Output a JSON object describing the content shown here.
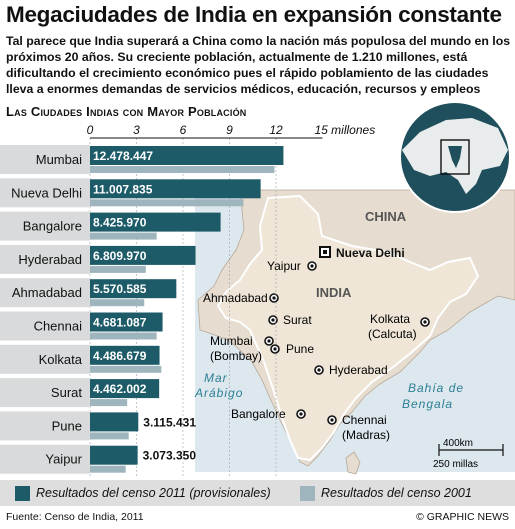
{
  "header": {
    "title": "Megaciudades de India en expansión constante",
    "subtitle": "Tal parece que India superará a China como la nación más populosa del mundo en los próximos 20 años. Su creciente población, actualmente de 1.210 millones, está dificultando el crecimiento económico pues el rápido poblamiento de las ciudades lleva a enormes demandas de servicios médicos, educación, recursos y empleos",
    "section_title": "Las Ciudades Indias con Mayor Población"
  },
  "colors": {
    "series_2011": "#1d5b68",
    "series_2001": "#9fb5bd",
    "label_box": "#1d5b68",
    "land": "#e6dccf",
    "sea": "#dce8ee",
    "globe": "#1f4f5c"
  },
  "chart_data": {
    "type": "bar",
    "orientation": "horizontal",
    "categories": [
      "Mumbai",
      "Nueva Delhi",
      "Bangalore",
      "Hyderabad",
      "Ahmadabad",
      "Chennai",
      "Kolkata",
      "Surat",
      "Pune",
      "Yaipur"
    ],
    "series": [
      {
        "name": "Resultados del censo 2011 (provisionales)",
        "values": [
          12478447,
          11007835,
          8425970,
          6809970,
          5570585,
          4681087,
          4486679,
          4462002,
          3115431,
          3073350
        ]
      },
      {
        "name": "Resultados del censo 2001",
        "values": [
          11900000,
          9900000,
          4300000,
          3600000,
          3500000,
          4300000,
          4600000,
          2400000,
          2500000,
          2300000
        ]
      }
    ],
    "value_labels": [
      "12.478.447",
      "11.007.835",
      "8.425.970",
      "6.809.970",
      "5.570.585",
      "4.681.087",
      "4.486.679",
      "4.462.002",
      "3.115.431",
      "3.073.350"
    ],
    "axis": {
      "ticks": [
        "0",
        "3",
        "6",
        "9",
        "12"
      ],
      "max_label": "15 millones",
      "xlim": [
        0,
        15000000
      ]
    }
  },
  "map": {
    "country_labels": {
      "china": "CHINA",
      "india": "INDIA"
    },
    "capital": "Nueva Delhi",
    "cities": [
      "Yaipur",
      "Ahmadabad",
      "Surat",
      "Mumbai",
      "(Bombay)",
      "Pune",
      "Kolkata",
      "(Calcuta)",
      "Hyderabad",
      "Bangalore",
      "Chennai",
      "(Madras)"
    ],
    "seas": {
      "arabian_line1": "Mar",
      "arabian_line2": "Arábigo",
      "bengal_line1": "Bahía de",
      "bengal_line2": "Bengala"
    },
    "scale": {
      "km": "400km",
      "miles": "250 millas"
    }
  },
  "legend": {
    "item_2011": "Resultados del censo 2011 (provisionales)",
    "item_2001": "Resultados del censo 2001"
  },
  "footer": {
    "source": "Fuente: Censo de India, 2011",
    "credit": "© GRAPHIC NEWS"
  }
}
